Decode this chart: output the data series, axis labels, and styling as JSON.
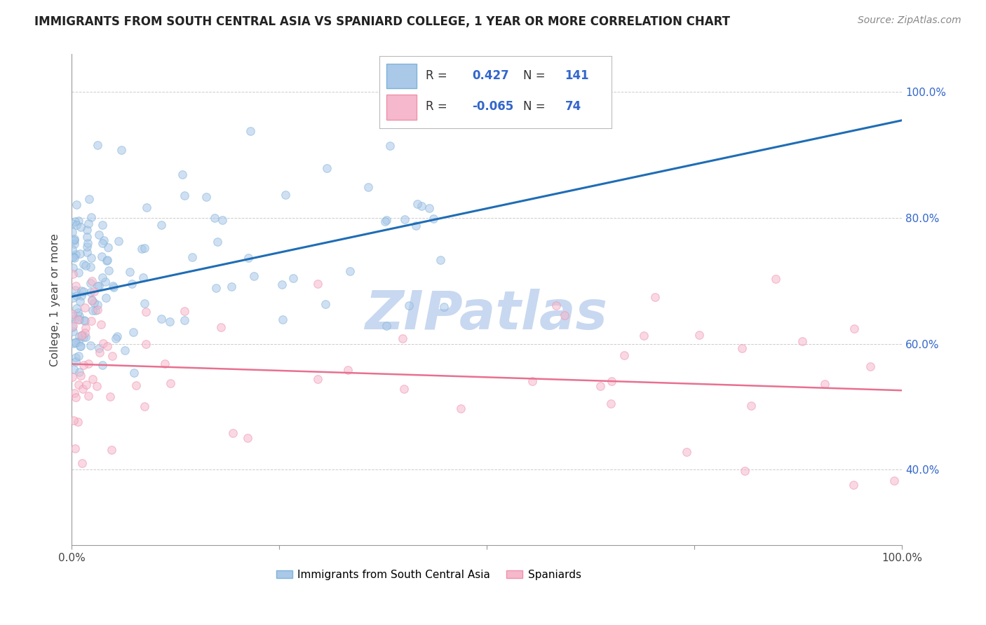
{
  "title": "IMMIGRANTS FROM SOUTH CENTRAL ASIA VS SPANIARD COLLEGE, 1 YEAR OR MORE CORRELATION CHART",
  "source": "Source: ZipAtlas.com",
  "ylabel": "College, 1 year or more",
  "xlim": [
    0.0,
    1.0
  ],
  "ylim": [
    0.28,
    1.06
  ],
  "ytick_values": [
    0.4,
    0.6,
    0.8,
    1.0
  ],
  "ytick_labels": [
    "40.0%",
    "60.0%",
    "80.0%",
    "100.0%"
  ],
  "legend_r1": "0.427",
  "legend_n1": "141",
  "legend_r2": "-0.065",
  "legend_n2": "74",
  "blue_scatter_color": "#aac8e8",
  "blue_edge_color": "#7fb3d9",
  "blue_line_color": "#1f6db5",
  "pink_scatter_color": "#f5b8cc",
  "pink_edge_color": "#f090aa",
  "pink_line_color": "#e87090",
  "watermark": "ZIPatlas",
  "watermark_color": "#c8d8f0",
  "background_color": "#ffffff",
  "title_fontsize": 12,
  "right_axis_color": "#3366cc",
  "grid_color": "#cccccc",
  "blue_slope": 0.28,
  "blue_intercept": 0.675,
  "pink_slope": -0.042,
  "pink_intercept": 0.568,
  "marker_size": 70,
  "marker_alpha": 0.55,
  "seed": 42
}
